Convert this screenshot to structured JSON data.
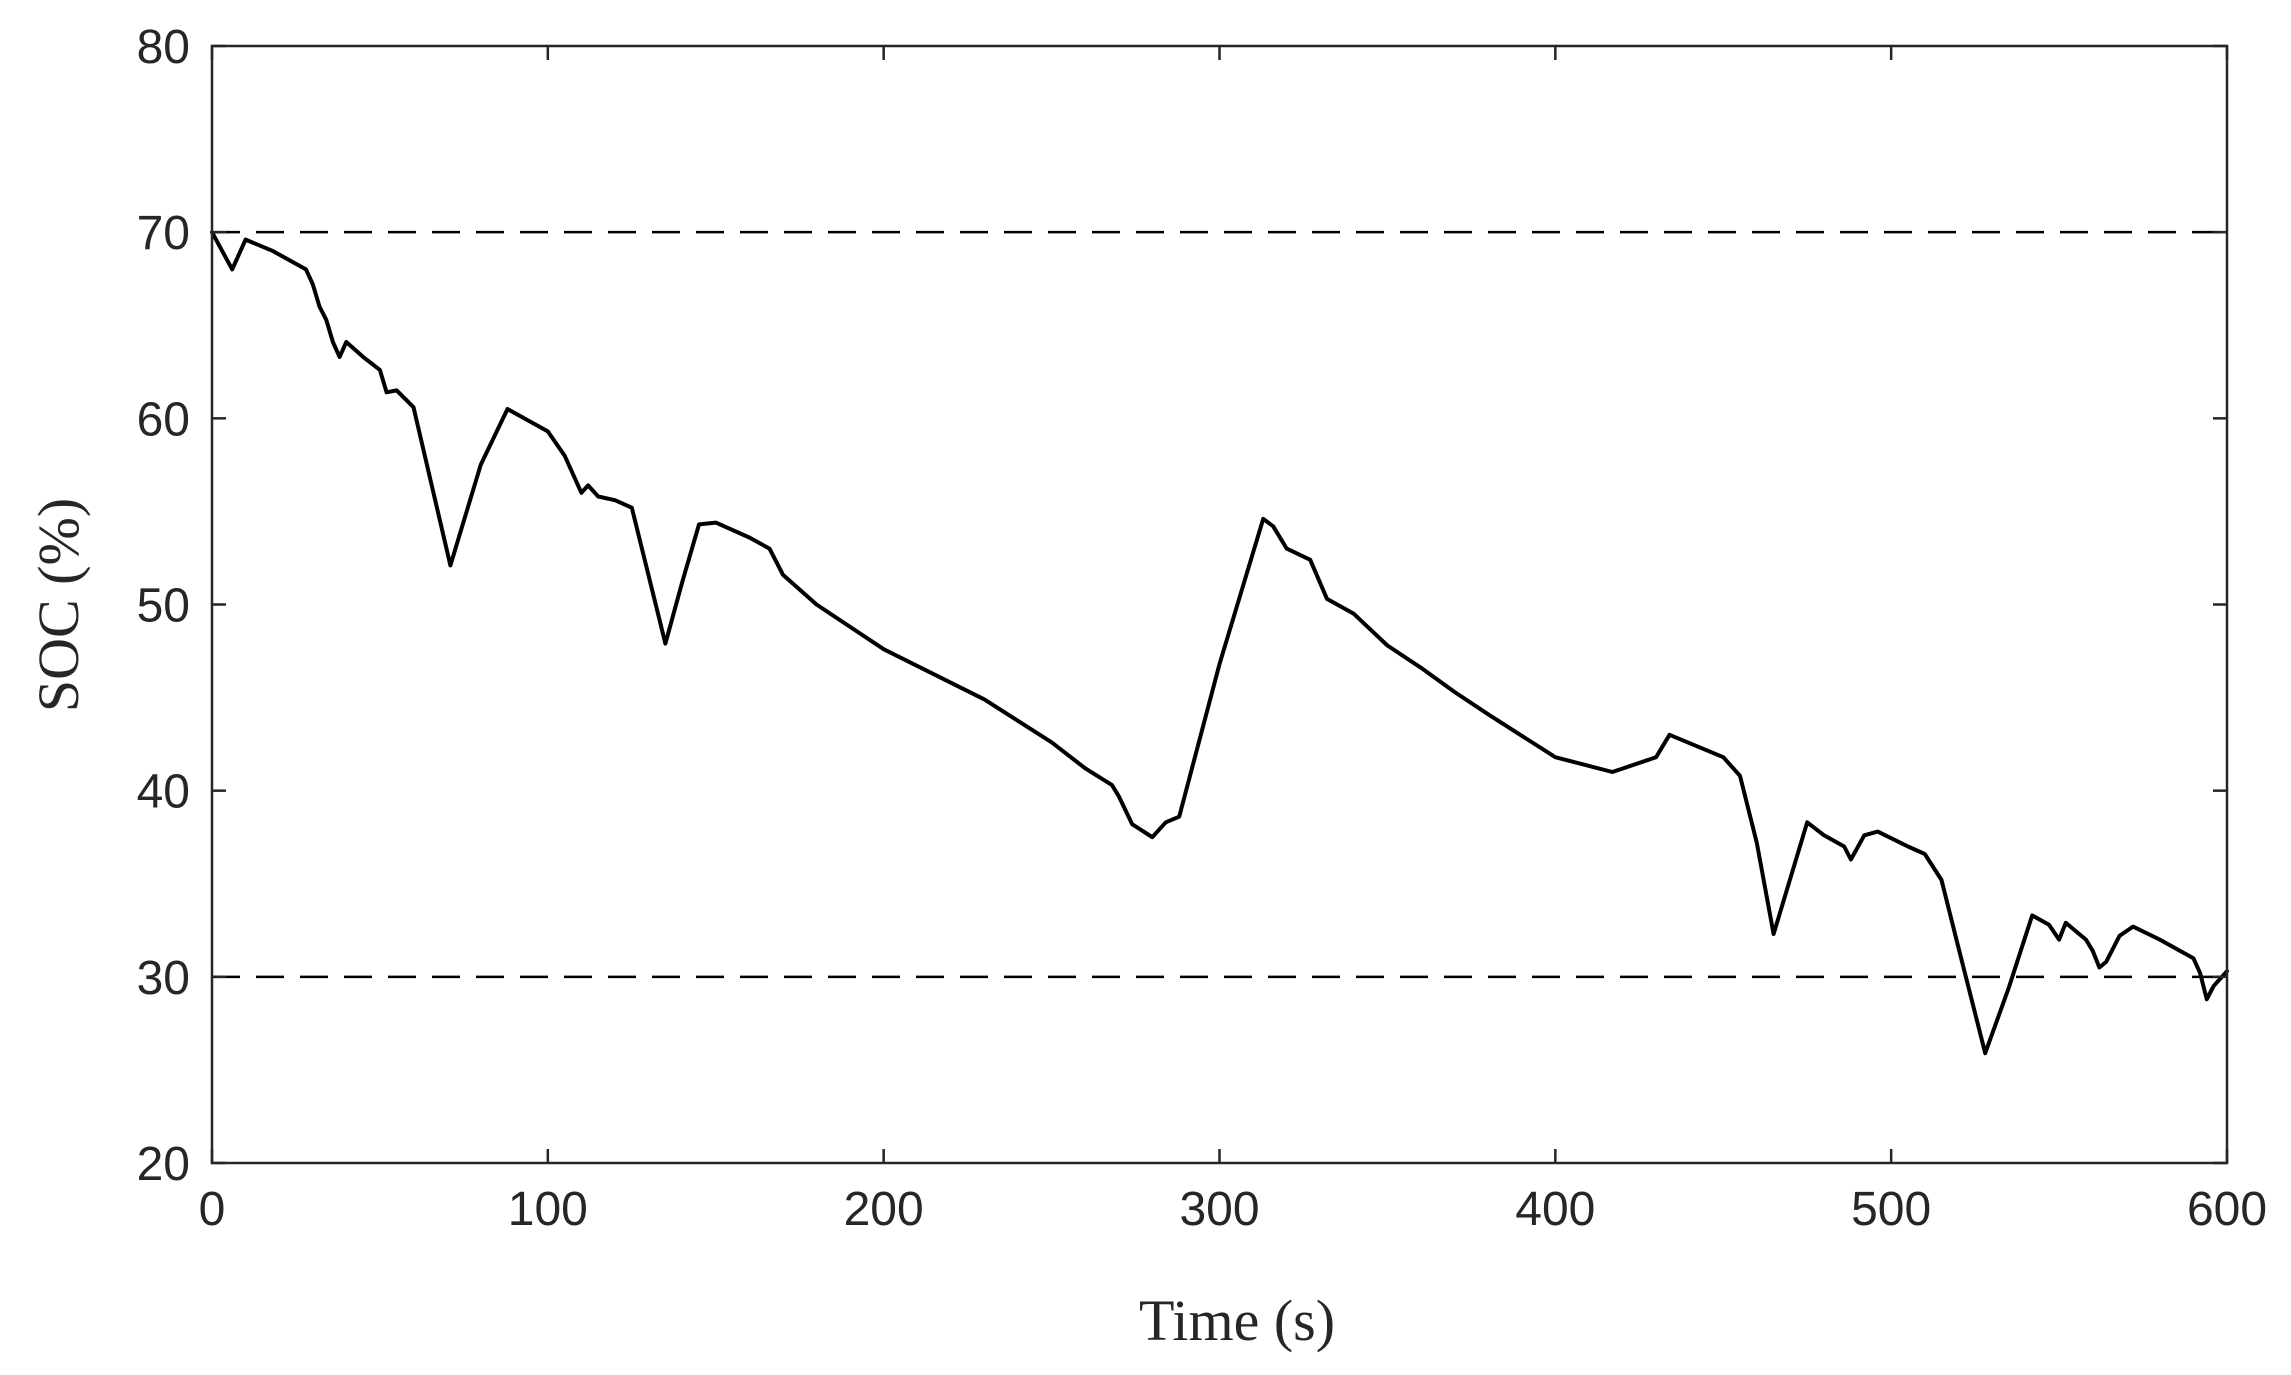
{
  "chart_data": {
    "type": "line",
    "title": "",
    "xlabel": "Time (s)",
    "ylabel": "SOC (%)",
    "xlim": [
      0,
      600
    ],
    "ylim": [
      20,
      80
    ],
    "xticks": [
      0,
      100,
      200,
      300,
      400,
      500,
      600
    ],
    "yticks": [
      20,
      30,
      40,
      50,
      60,
      70,
      80
    ],
    "grid": false,
    "legend": false,
    "line_color": "#000000",
    "series": [
      {
        "x": [
          0,
          3,
          6,
          10,
          18,
          28,
          30,
          32,
          34,
          36,
          38,
          40,
          45,
          50,
          52,
          55,
          60,
          71,
          80,
          88,
          100,
          105,
          110,
          112,
          115,
          120,
          125,
          135,
          140,
          145,
          150,
          160,
          166,
          170,
          180,
          200,
          230,
          250,
          260,
          268,
          270,
          274,
          280,
          284,
          288,
          300,
          313,
          316,
          320,
          327,
          332,
          340,
          350,
          360,
          370,
          380,
          400,
          417,
          430,
          434,
          450,
          455,
          460,
          465,
          475,
          480,
          486,
          488,
          492,
          496,
          505,
          510,
          515,
          520,
          528,
          535,
          542,
          547,
          550,
          552,
          558,
          560,
          562,
          564,
          568,
          572,
          580,
          590,
          592,
          594,
          596,
          600
        ],
        "y": [
          70,
          69,
          68,
          69.6,
          69,
          68,
          67.2,
          66,
          65.3,
          64.1,
          63.3,
          64.1,
          63.3,
          62.6,
          61.4,
          61.5,
          60.6,
          52.1,
          57.5,
          60.5,
          59.3,
          58,
          56,
          56.4,
          55.8,
          55.6,
          55.2,
          47.9,
          51.2,
          54.3,
          54.4,
          53.6,
          53,
          51.6,
          50,
          47.6,
          44.9,
          42.6,
          41.2,
          40.3,
          39.7,
          38.2,
          37.5,
          38.3,
          38.6,
          46.8,
          54.6,
          54.2,
          53,
          52.4,
          50.3,
          49.5,
          47.8,
          46.6,
          45.3,
          44.1,
          41.8,
          41,
          41.8,
          43,
          41.8,
          40.8,
          37.2,
          32.3,
          38.3,
          37.6,
          37,
          36.3,
          37.6,
          37.8,
          37,
          36.6,
          35.2,
          31.6,
          25.9,
          29.4,
          33.3,
          32.8,
          32,
          32.9,
          32,
          31.4,
          30.5,
          30.8,
          32.2,
          32.7,
          32,
          31,
          30.2,
          28.8,
          29.5,
          30.3
        ]
      }
    ],
    "reference_lines": [
      {
        "y": 70,
        "style": "dashed"
      },
      {
        "y": 30,
        "style": "dashed"
      }
    ]
  }
}
